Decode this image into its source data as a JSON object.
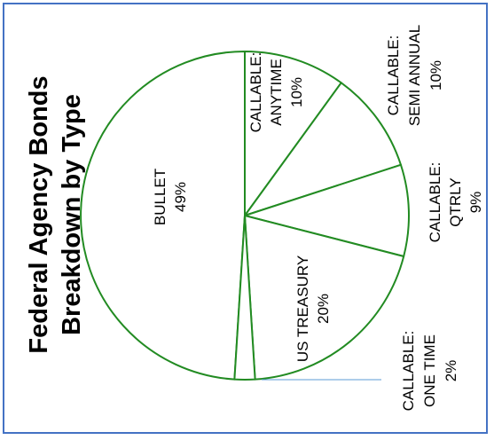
{
  "chart_data": {
    "type": "pie",
    "title_line1": "Federal Agency Bonds",
    "title_line2": "Breakdown  by Type",
    "slices": [
      {
        "key": "bullet",
        "line1": "BULLET",
        "line2": "49%",
        "value": 49
      },
      {
        "key": "callable-anytime",
        "line1": "CALLABLE:",
        "line2": "ANYTIME",
        "line3": "10%",
        "value": 10
      },
      {
        "key": "callable-semi-annual",
        "line1": "CALLABLE:",
        "line2": "SEMI ANNUAL",
        "line3": "10%",
        "value": 10
      },
      {
        "key": "callable-qtrly",
        "line1": "CALLABLE:",
        "line2": "QTRLY",
        "line3": "9%",
        "value": 9
      },
      {
        "key": "us-treasury",
        "line1": "US TREASURY",
        "line2": "20%",
        "value": 20
      },
      {
        "key": "callable-one-time",
        "line1": "CALLABLE:",
        "line2": "ONE TIME",
        "line3": "2%",
        "value": 2
      }
    ],
    "colors": {
      "slice_fill": "#ffffff",
      "slice_stroke": "#228b22",
      "frame": "#4472c4",
      "leader": "#5b9bd5"
    }
  }
}
